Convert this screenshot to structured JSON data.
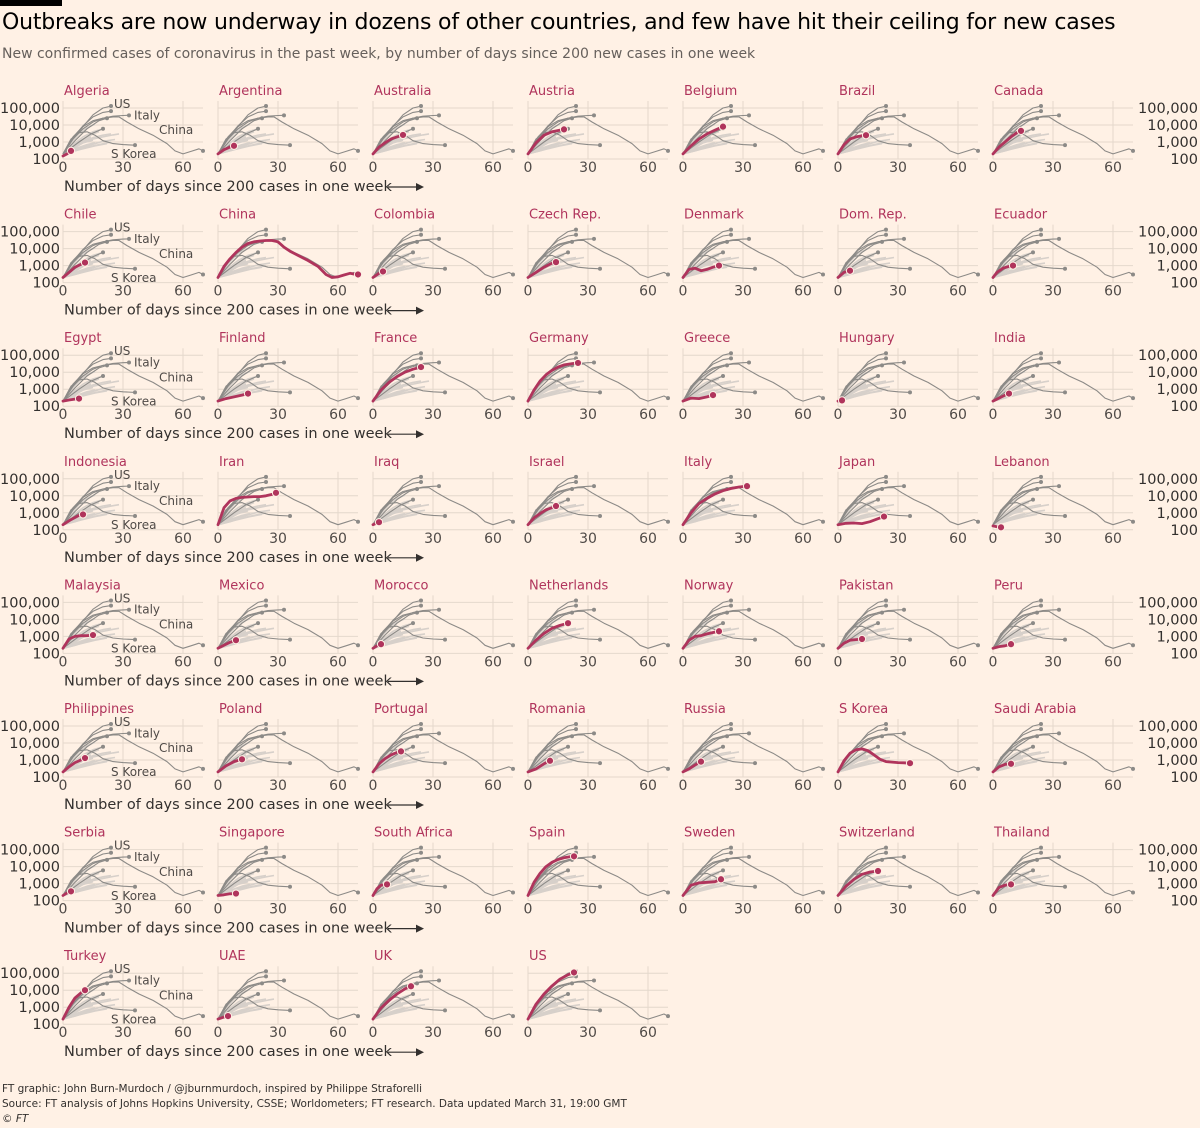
{
  "title": "Outbreaks are now underway in dozens of other countries, and few have hit their ceiling for new cases",
  "subtitle": "New confirmed cases of coronavirus in the past week, by number of days since 200 new cases in one week",
  "footer": {
    "credit": "FT graphic: John Burn-Murdoch / @jburnmurdoch, inspired by Philippe Straforelli",
    "source": "Source: FT analysis of Johns Hopkins University, CSSE; Worldometers; FT research. Data updated March 31, 19:00 GMT",
    "copyright": "© FT"
  },
  "chart_data": {
    "type": "line",
    "layout": "small-multiples",
    "columns": 7,
    "y_scale": "log",
    "yticks": [
      "100,000",
      "10,000",
      "1,000",
      "100"
    ],
    "ytick_values": [
      100000,
      10000,
      1000,
      100
    ],
    "xticks": [
      "0",
      "30",
      "60"
    ],
    "xtick_values": [
      0,
      30,
      60
    ],
    "xlim": [
      0,
      70
    ],
    "ylim": [
      100,
      150000
    ],
    "xlabel": "Number of days since 200 cases in one week",
    "reference_labels": [
      "US",
      "Italy",
      "China",
      "S Korea"
    ],
    "colors": {
      "highlight": "#b0345c",
      "reference": "#8c8a87",
      "background": "#d7d0ca",
      "grid": "#e4d8cc"
    },
    "reference_series": [
      {
        "name": "US",
        "x": [
          0,
          5,
          10,
          15,
          20,
          24
        ],
        "y": [
          200,
          1500,
          8000,
          40000,
          100000,
          130000
        ]
      },
      {
        "name": "Italy",
        "x": [
          0,
          5,
          10,
          15,
          20,
          25,
          30,
          33
        ],
        "y": [
          200,
          1500,
          6000,
          15000,
          25000,
          33000,
          36000,
          37000
        ]
      },
      {
        "name": "China",
        "x": [
          0,
          5,
          10,
          15,
          20,
          25,
          28,
          32,
          38,
          45,
          52,
          56,
          60,
          64,
          68,
          70
        ],
        "y": [
          200,
          2000,
          8000,
          18000,
          25000,
          30000,
          30000,
          15000,
          6000,
          2500,
          800,
          300,
          200,
          280,
          400,
          300
        ]
      },
      {
        "name": "S Korea",
        "x": [
          0,
          4,
          8,
          12,
          16,
          20,
          25,
          30,
          36
        ],
        "y": [
          200,
          1500,
          3500,
          4000,
          2500,
          1200,
          800,
          700,
          650
        ]
      },
      {
        "name": "",
        "x": [
          0,
          5,
          10,
          15,
          20,
          24
        ],
        "y": [
          200,
          1800,
          9000,
          30000,
          55000,
          65000
        ]
      },
      {
        "name": "",
        "x": [
          0,
          6,
          12,
          18,
          22
        ],
        "y": [
          200,
          1200,
          6000,
          18000,
          25000
        ]
      },
      {
        "name": "",
        "x": [
          0,
          8,
          14,
          20
        ],
        "y": [
          200,
          1000,
          3000,
          6000
        ]
      }
    ],
    "background_series": [
      {
        "x": [
          0,
          5,
          10,
          15,
          20
        ],
        "y": [
          200,
          700,
          2000,
          4000,
          6000
        ]
      },
      {
        "x": [
          0,
          5,
          10,
          15,
          18
        ],
        "y": [
          200,
          600,
          1500,
          3000,
          4000
        ]
      },
      {
        "x": [
          0,
          5,
          10,
          14
        ],
        "y": [
          200,
          500,
          1200,
          2000
        ]
      },
      {
        "x": [
          0,
          5,
          10,
          15,
          20,
          24
        ],
        "y": [
          200,
          500,
          1000,
          1800,
          2500,
          3000
        ]
      },
      {
        "x": [
          0,
          6,
          12,
          16
        ],
        "y": [
          200,
          400,
          700,
          900
        ]
      },
      {
        "x": [
          0,
          5,
          10,
          15,
          20,
          25,
          28
        ],
        "y": [
          200,
          400,
          900,
          1500,
          2000,
          2600,
          3000
        ]
      },
      {
        "x": [
          0,
          8,
          16,
          22
        ],
        "y": [
          200,
          350,
          600,
          800
        ]
      },
      {
        "x": [
          0,
          6,
          12,
          18,
          24
        ],
        "y": [
          200,
          300,
          500,
          700,
          1000
        ]
      },
      {
        "x": [
          0,
          5,
          10,
          15
        ],
        "y": [
          200,
          450,
          900,
          1300
        ]
      },
      {
        "x": [
          0,
          10,
          20,
          26
        ],
        "y": [
          200,
          500,
          1100,
          1400
        ]
      },
      {
        "x": [
          0,
          4,
          8,
          12,
          16
        ],
        "y": [
          200,
          900,
          3000,
          7000,
          11000
        ]
      },
      {
        "x": [
          0,
          4,
          8,
          12
        ],
        "y": [
          200,
          1000,
          4000,
          8000
        ]
      }
    ],
    "panels": [
      {
        "name": "Algeria",
        "x": [
          0,
          2,
          4
        ],
        "y": [
          150,
          200,
          300
        ]
      },
      {
        "name": "Argentina",
        "x": [
          0,
          3,
          6,
          8
        ],
        "y": [
          200,
          350,
          500,
          600
        ]
      },
      {
        "name": "Australia",
        "x": [
          0,
          3,
          6,
          9,
          12,
          15
        ],
        "y": [
          200,
          500,
          900,
          1500,
          2000,
          2600
        ]
      },
      {
        "name": "Austria",
        "x": [
          0,
          4,
          8,
          12,
          16,
          18
        ],
        "y": [
          200,
          900,
          2500,
          4000,
          5000,
          5500
        ]
      },
      {
        "name": "Belgium",
        "x": [
          0,
          4,
          8,
          12,
          16,
          20
        ],
        "y": [
          200,
          600,
          1500,
          3000,
          5000,
          8000
        ]
      },
      {
        "name": "Brazil",
        "x": [
          0,
          3,
          6,
          9,
          12,
          14
        ],
        "y": [
          200,
          700,
          1500,
          2000,
          2300,
          2500
        ]
      },
      {
        "name": "Canada",
        "x": [
          0,
          3,
          6,
          9,
          12,
          14
        ],
        "y": [
          200,
          500,
          1000,
          2000,
          3500,
          4500
        ]
      },
      {
        "name": "Chile",
        "x": [
          0,
          3,
          6,
          9,
          11
        ],
        "y": [
          200,
          400,
          800,
          1200,
          1500
        ]
      },
      {
        "name": "China",
        "x": [
          0,
          3,
          6,
          9,
          12,
          15,
          18,
          21,
          24,
          27,
          30,
          33,
          36,
          40,
          45,
          50,
          54,
          57,
          60,
          63,
          66,
          69,
          70
        ],
        "y": [
          200,
          900,
          2500,
          6000,
          12000,
          20000,
          25000,
          28000,
          30000,
          30000,
          25000,
          12000,
          7000,
          4000,
          2000,
          900,
          300,
          200,
          220,
          280,
          350,
          300,
          300
        ]
      },
      {
        "name": "Colombia",
        "x": [
          0,
          3,
          5
        ],
        "y": [
          200,
          350,
          450
        ]
      },
      {
        "name": "Czech Rep.",
        "x": [
          0,
          4,
          8,
          12,
          14
        ],
        "y": [
          200,
          400,
          800,
          1400,
          1600
        ]
      },
      {
        "name": "Denmark",
        "x": [
          0,
          3,
          6,
          9,
          12,
          15,
          18
        ],
        "y": [
          200,
          600,
          700,
          500,
          600,
          800,
          1000
        ]
      },
      {
        "name": "Dom. Rep.",
        "x": [
          0,
          3,
          6
        ],
        "y": [
          200,
          400,
          500
        ]
      },
      {
        "name": "Ecuador",
        "x": [
          0,
          2,
          5,
          8,
          10
        ],
        "y": [
          200,
          400,
          700,
          900,
          1000
        ]
      },
      {
        "name": "Egypt",
        "x": [
          0,
          3,
          6,
          8
        ],
        "y": [
          200,
          230,
          260,
          280
        ]
      },
      {
        "name": "Finland",
        "x": [
          0,
          4,
          8,
          12,
          15
        ],
        "y": [
          200,
          280,
          350,
          450,
          550
        ]
      },
      {
        "name": "France",
        "x": [
          0,
          4,
          8,
          12,
          16,
          20,
          24
        ],
        "y": [
          200,
          900,
          2500,
          5500,
          10000,
          15000,
          20000
        ]
      },
      {
        "name": "Germany",
        "x": [
          0,
          3,
          6,
          9,
          12,
          15,
          18,
          22,
          25
        ],
        "y": [
          200,
          900,
          3000,
          7000,
          13000,
          20000,
          27000,
          32000,
          35000
        ]
      },
      {
        "name": "Greece",
        "x": [
          0,
          4,
          8,
          12,
          15
        ],
        "y": [
          200,
          300,
          280,
          350,
          450
        ]
      },
      {
        "name": "Hungary",
        "x": [
          0,
          2
        ],
        "y": [
          200,
          220
        ]
      },
      {
        "name": "India",
        "x": [
          0,
          3,
          6,
          8
        ],
        "y": [
          200,
          300,
          450,
          550
        ]
      },
      {
        "name": "Indonesia",
        "x": [
          0,
          4,
          8,
          10
        ],
        "y": [
          200,
          400,
          700,
          800
        ]
      },
      {
        "name": "Iran",
        "x": [
          0,
          3,
          6,
          9,
          12,
          15,
          18,
          21,
          24,
          27,
          29
        ],
        "y": [
          200,
          2000,
          5000,
          7000,
          8000,
          8500,
          9000,
          9000,
          10000,
          12000,
          15000
        ]
      },
      {
        "name": "Iraq",
        "x": [
          0,
          2,
          3
        ],
        "y": [
          200,
          250,
          280
        ]
      },
      {
        "name": "Israel",
        "x": [
          0,
          3,
          6,
          9,
          12,
          14
        ],
        "y": [
          200,
          500,
          900,
          1500,
          2000,
          2500
        ]
      },
      {
        "name": "Italy",
        "x": [
          0,
          4,
          8,
          12,
          16,
          20,
          24,
          28,
          32
        ],
        "y": [
          200,
          1000,
          3500,
          7000,
          13000,
          20000,
          27000,
          33000,
          37000
        ]
      },
      {
        "name": "Japan",
        "x": [
          0,
          4,
          8,
          12,
          16,
          20,
          23
        ],
        "y": [
          200,
          240,
          250,
          230,
          300,
          450,
          600
        ]
      },
      {
        "name": "Lebanon",
        "x": [
          0,
          2,
          4
        ],
        "y": [
          170,
          150,
          140
        ]
      },
      {
        "name": "Malaysia",
        "x": [
          0,
          3,
          6,
          9,
          12,
          15
        ],
        "y": [
          200,
          700,
          1000,
          1100,
          1100,
          1200
        ]
      },
      {
        "name": "Mexico",
        "x": [
          0,
          3,
          6,
          9
        ],
        "y": [
          200,
          300,
          450,
          600
        ]
      },
      {
        "name": "Morocco",
        "x": [
          0,
          2,
          4
        ],
        "y": [
          200,
          280,
          350
        ]
      },
      {
        "name": "Netherlands",
        "x": [
          0,
          4,
          8,
          12,
          16,
          20
        ],
        "y": [
          200,
          600,
          1500,
          3000,
          4500,
          6000
        ]
      },
      {
        "name": "Norway",
        "x": [
          0,
          3,
          6,
          9,
          12,
          15,
          18
        ],
        "y": [
          200,
          600,
          1000,
          1100,
          1400,
          1700,
          2000
        ]
      },
      {
        "name": "Pakistan",
        "x": [
          0,
          3,
          6,
          9,
          12
        ],
        "y": [
          200,
          400,
          600,
          650,
          700
        ]
      },
      {
        "name": "Peru",
        "x": [
          0,
          3,
          6,
          9
        ],
        "y": [
          200,
          250,
          280,
          350
        ]
      },
      {
        "name": "Philippines",
        "x": [
          0,
          3,
          6,
          9,
          11
        ],
        "y": [
          200,
          400,
          700,
          1000,
          1300
        ]
      },
      {
        "name": "Poland",
        "x": [
          0,
          4,
          8,
          12
        ],
        "y": [
          200,
          450,
          800,
          1100
        ]
      },
      {
        "name": "Portugal",
        "x": [
          0,
          3,
          6,
          9,
          12,
          14
        ],
        "y": [
          200,
          600,
          1200,
          2000,
          2800,
          3200
        ]
      },
      {
        "name": "Romania",
        "x": [
          0,
          4,
          8,
          11
        ],
        "y": [
          200,
          300,
          600,
          900
        ]
      },
      {
        "name": "Russia",
        "x": [
          0,
          3,
          6,
          9
        ],
        "y": [
          200,
          300,
          500,
          800
        ]
      },
      {
        "name": "S Korea",
        "x": [
          0,
          3,
          6,
          9,
          12,
          15,
          18,
          21,
          24,
          27,
          30,
          33,
          36
        ],
        "y": [
          200,
          900,
          2500,
          4000,
          4500,
          3500,
          2000,
          1100,
          800,
          750,
          700,
          680,
          650
        ]
      },
      {
        "name": "Saudi Arabia",
        "x": [
          0,
          3,
          6,
          9
        ],
        "y": [
          200,
          400,
          550,
          600
        ]
      },
      {
        "name": "Serbia",
        "x": [
          0,
          2,
          4
        ],
        "y": [
          200,
          280,
          350
        ]
      },
      {
        "name": "Singapore",
        "x": [
          0,
          3,
          6,
          9
        ],
        "y": [
          200,
          220,
          250,
          260
        ]
      },
      {
        "name": "South Africa",
        "x": [
          0,
          2,
          4,
          7
        ],
        "y": [
          200,
          500,
          800,
          900
        ]
      },
      {
        "name": "Spain",
        "x": [
          0,
          3,
          6,
          9,
          12,
          15,
          18,
          21,
          23
        ],
        "y": [
          200,
          1200,
          4000,
          10000,
          18000,
          26000,
          33000,
          38000,
          40000
        ]
      },
      {
        "name": "Sweden",
        "x": [
          0,
          4,
          8,
          12,
          16,
          19
        ],
        "y": [
          200,
          800,
          1100,
          1200,
          1300,
          1800
        ]
      },
      {
        "name": "Switzerland",
        "x": [
          0,
          4,
          8,
          12,
          16,
          20
        ],
        "y": [
          200,
          700,
          1800,
          3500,
          4800,
          5500
        ]
      },
      {
        "name": "Thailand",
        "x": [
          0,
          3,
          6,
          9
        ],
        "y": [
          200,
          600,
          800,
          900
        ]
      },
      {
        "name": "Turkey",
        "x": [
          0,
          3,
          6,
          9,
          11
        ],
        "y": [
          200,
          1000,
          3500,
          7000,
          10000
        ]
      },
      {
        "name": "UAE",
        "x": [
          0,
          3,
          5
        ],
        "y": [
          200,
          260,
          300
        ]
      },
      {
        "name": "UK",
        "x": [
          0,
          4,
          8,
          12,
          16,
          19
        ],
        "y": [
          200,
          900,
          2500,
          6000,
          12000,
          17000
        ]
      },
      {
        "name": "US",
        "x": [
          0,
          4,
          8,
          12,
          16,
          20,
          23
        ],
        "y": [
          200,
          1500,
          6000,
          18000,
          45000,
          80000,
          110000
        ]
      }
    ]
  }
}
